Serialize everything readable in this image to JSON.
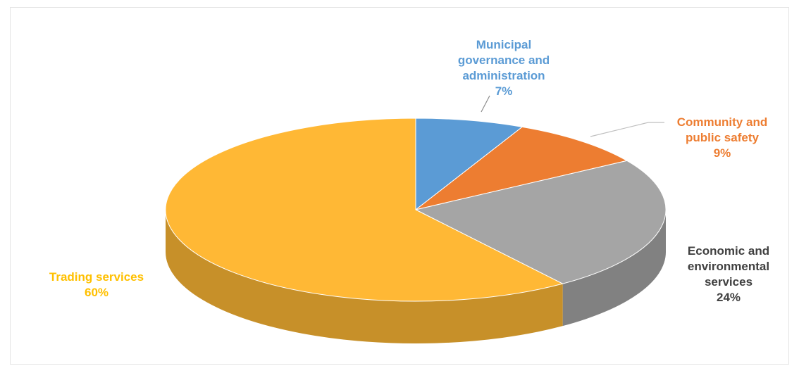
{
  "chart_data": {
    "type": "pie",
    "style": "3d",
    "title": "",
    "legend": "none",
    "slices": [
      {
        "name": "Municipal governance and administration",
        "label_lines": [
          "Municipal",
          "governance and",
          "administration"
        ],
        "value": 7,
        "label": "7%",
        "color": "#5B9BD5"
      },
      {
        "name": "Community and public safety",
        "label_lines": [
          "Community and",
          "public safety"
        ],
        "value": 9,
        "label": "9%",
        "color": "#ED7D31"
      },
      {
        "name": "Economic and environmental services",
        "label_lines": [
          "Economic and",
          "environmental",
          "services"
        ],
        "value": 24,
        "label": "24%",
        "color": "#A5A5A5"
      },
      {
        "name": "Trading services",
        "label_lines": [
          "Trading services"
        ],
        "value": 60,
        "label": "60%",
        "color": "#FFB835"
      }
    ],
    "label_colors": [
      "#5B9BD5",
      "#ED7D31",
      "#404040",
      "#FFC000"
    ]
  }
}
